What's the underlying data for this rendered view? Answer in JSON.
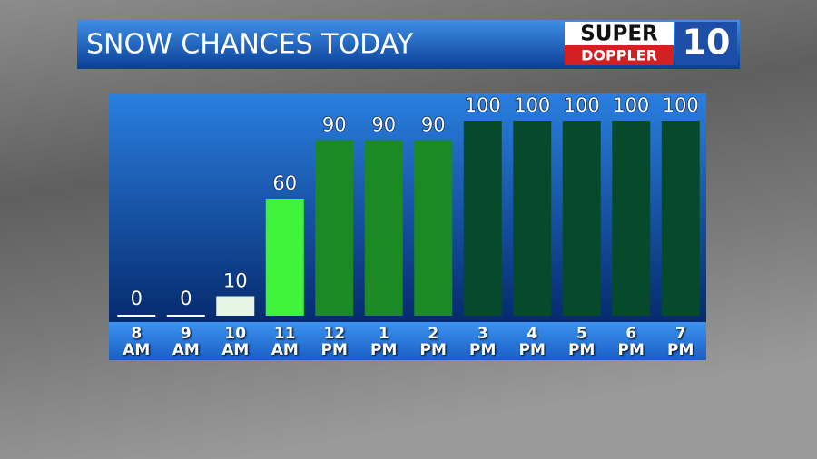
{
  "chart_data": {
    "type": "bar",
    "title": "SNOW CHANCES TODAY",
    "categories": [
      "8\nAM",
      "9\nAM",
      "10\nAM",
      "11\nAM",
      "12\nPM",
      "1\nPM",
      "2\nPM",
      "3\nPM",
      "4\nPM",
      "5\nPM",
      "6\nPM",
      "7\nPM"
    ],
    "values": [
      0,
      0,
      10,
      60,
      90,
      90,
      90,
      100,
      100,
      100,
      100,
      100
    ],
    "colors": [
      "#ffffff",
      "#ffffff",
      "#e6f5e4",
      "#3ff23a",
      "#1b8a25",
      "#1b8a25",
      "#1b8a25",
      "#074a2b",
      "#074a2b",
      "#074a2b",
      "#074a2b",
      "#074a2b"
    ]
  },
  "logo": {
    "line1": "SUPER",
    "line2": "DOPPLER",
    "number": "10"
  }
}
